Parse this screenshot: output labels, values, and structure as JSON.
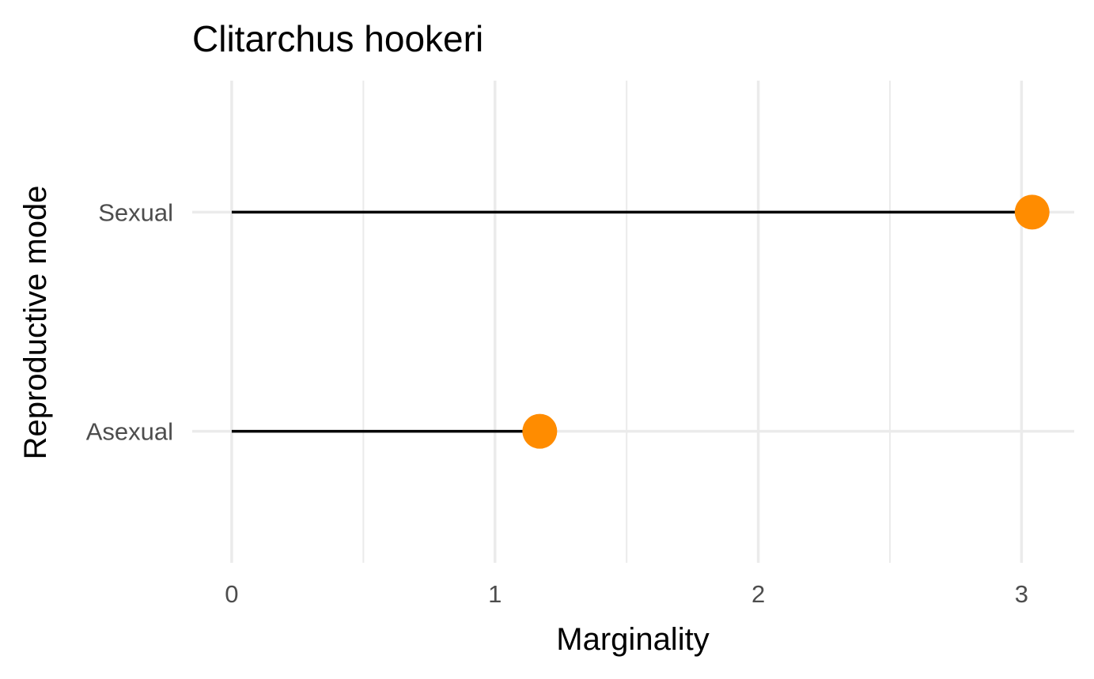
{
  "chart_data": {
    "type": "lollipop",
    "title": "Clitarchus hookeri",
    "xlabel": "Marginality",
    "ylabel": "Reproductive mode",
    "categories": [
      "Asexual",
      "Sexual"
    ],
    "values": [
      1.17,
      3.04
    ],
    "xlim": [
      -0.15,
      3.2
    ],
    "x_ticks": [
      0,
      1,
      2,
      3
    ],
    "x_tick_labels": [
      "0",
      "1",
      "2",
      "3"
    ],
    "x_minor_ticks": [
      0.5,
      1.5,
      2.5
    ],
    "grid": true,
    "legend": "none",
    "point_color": "#ff8c00",
    "segment_color": "#000000",
    "grid_color": "#ebebeb"
  }
}
